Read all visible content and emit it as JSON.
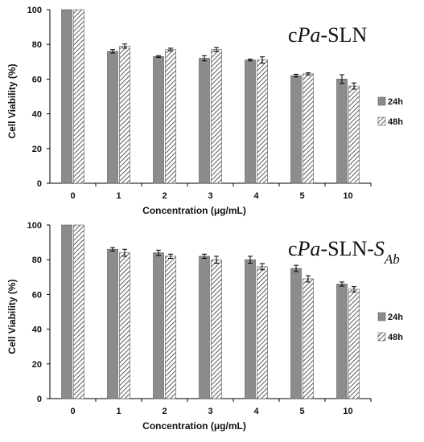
{
  "chart_data": [
    {
      "type": "bar",
      "title_parts": [
        {
          "text": "c",
          "italic": false
        },
        {
          "text": "Pa",
          "italic": true
        },
        {
          "text": "-SLN",
          "italic": false
        }
      ],
      "xlabel": "Concentration (μg/mL)",
      "ylabel": "Cell Viability (%)",
      "ylim": [
        0,
        100
      ],
      "yticks": [
        0,
        20,
        40,
        60,
        80,
        100
      ],
      "categories": [
        "0",
        "1",
        "2",
        "3",
        "4",
        "5",
        "10"
      ],
      "series": [
        {
          "name": "24h",
          "values": [
            100,
            76,
            73,
            72,
            71,
            62,
            60
          ],
          "errors": [
            0,
            1,
            0.5,
            1.5,
            0.5,
            0.8,
            2.5
          ]
        },
        {
          "name": "48h",
          "values": [
            100,
            79,
            77,
            77,
            71,
            63,
            56
          ],
          "errors": [
            0,
            1.2,
            0.8,
            1.2,
            1.8,
            0.6,
            1.8
          ]
        }
      ],
      "legend": "right",
      "grid": false
    },
    {
      "type": "bar",
      "title_parts": [
        {
          "text": "c",
          "italic": false
        },
        {
          "text": "Pa",
          "italic": true
        },
        {
          "text": "-SLN-",
          "italic": false
        },
        {
          "text": "S",
          "italic": true
        },
        {
          "text": "Ab",
          "italic": true,
          "sub": true
        }
      ],
      "xlabel": "Concentration (μg/mL)",
      "ylabel": "Cell Viability (%)",
      "ylim": [
        0,
        100
      ],
      "yticks": [
        0,
        20,
        40,
        60,
        80,
        100
      ],
      "categories": [
        "0",
        "1",
        "2",
        "3",
        "4",
        "5",
        "10"
      ],
      "series": [
        {
          "name": "24h",
          "values": [
            100,
            86,
            84,
            82,
            80,
            75,
            66
          ],
          "errors": [
            0,
            1,
            1.5,
            1.2,
            2,
            1.8,
            1.2
          ]
        },
        {
          "name": "48h",
          "values": [
            100,
            84,
            82,
            80,
            76,
            69,
            63
          ],
          "errors": [
            0,
            2,
            1.2,
            2,
            1.8,
            1.8,
            1.5
          ]
        }
      ],
      "legend": "right",
      "grid": false
    }
  ],
  "colors": {
    "series_24h": "#8c8c8c",
    "series_48h_hatch": "#333333",
    "axis": "#000000"
  }
}
